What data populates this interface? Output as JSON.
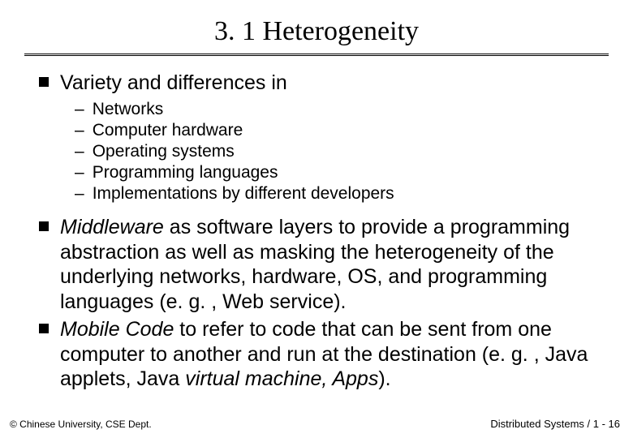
{
  "slide": {
    "title": "3. 1 Heterogeneity",
    "footer_left": "© Chinese University, CSE Dept.",
    "footer_right": "Distributed Systems / 1 - 16",
    "bullets": {
      "b0": {
        "text": "Variety and differences in",
        "subs": [
          "Networks",
          "Computer hardware",
          "Operating systems",
          "Programming languages",
          "Implementations by different developers"
        ]
      },
      "b1": {
        "italic_lead": "Middleware",
        "rest": " as software layers to provide a programming abstraction as well as masking the heterogeneity of the underlying networks, hardware, OS, and programming languages (e. g. , Web service)."
      },
      "b2": {
        "italic_lead": "Mobile Code",
        "rest_a": " to refer to code that can be sent from one computer to another and run at the destination (e. g. , Java applets, Java ",
        "italic_mid": "virtual machine, Apps",
        "rest_b": ")."
      }
    }
  },
  "style": {
    "background_color": "#ffffff",
    "text_color": "#000000",
    "title_fontsize": 34,
    "body_fontsize": 25,
    "sub_fontsize": 21,
    "footer_fontsize": 12,
    "bullet_shape": "filled-square",
    "bullet_color": "#000000",
    "divider_style": "double"
  }
}
